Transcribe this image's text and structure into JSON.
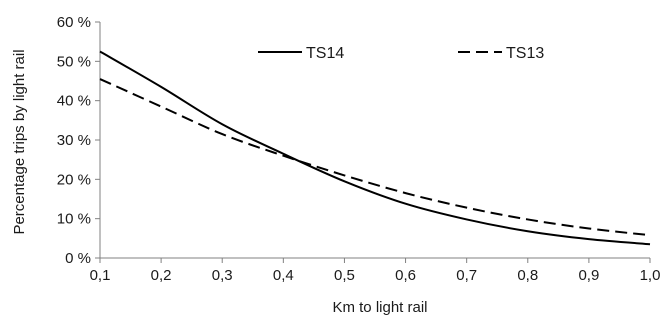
{
  "chart_data": {
    "type": "line",
    "xlabel": "Km to light rail",
    "ylabel": "Percentage trips by light rail",
    "xlim": [
      0.1,
      1.0
    ],
    "ylim": [
      0,
      60
    ],
    "x_ticks": [
      "0,1",
      "0,2",
      "0,3",
      "0,4",
      "0,5",
      "0,6",
      "0,7",
      "0,8",
      "0,9",
      "1,0"
    ],
    "y_ticks": [
      "0 %",
      "10 %",
      "20 %",
      "30 %",
      "40 %",
      "50 %",
      "60 %"
    ],
    "grid": false,
    "legend_position": "top",
    "x": [
      0.1,
      0.2,
      0.3,
      0.4,
      0.5,
      0.6,
      0.7,
      0.8,
      0.9,
      1.0
    ],
    "series": [
      {
        "name": "TS14",
        "style": "solid",
        "color": "#000000",
        "values": [
          52.5,
          43.5,
          34,
          26.5,
          19.5,
          13.8,
          9.8,
          6.8,
          4.8,
          3.5
        ]
      },
      {
        "name": "TS13",
        "style": "dashed",
        "color": "#000000",
        "values": [
          45.5,
          38.5,
          31.5,
          26,
          21,
          16.5,
          12.8,
          9.8,
          7.5,
          5.8
        ]
      }
    ]
  }
}
